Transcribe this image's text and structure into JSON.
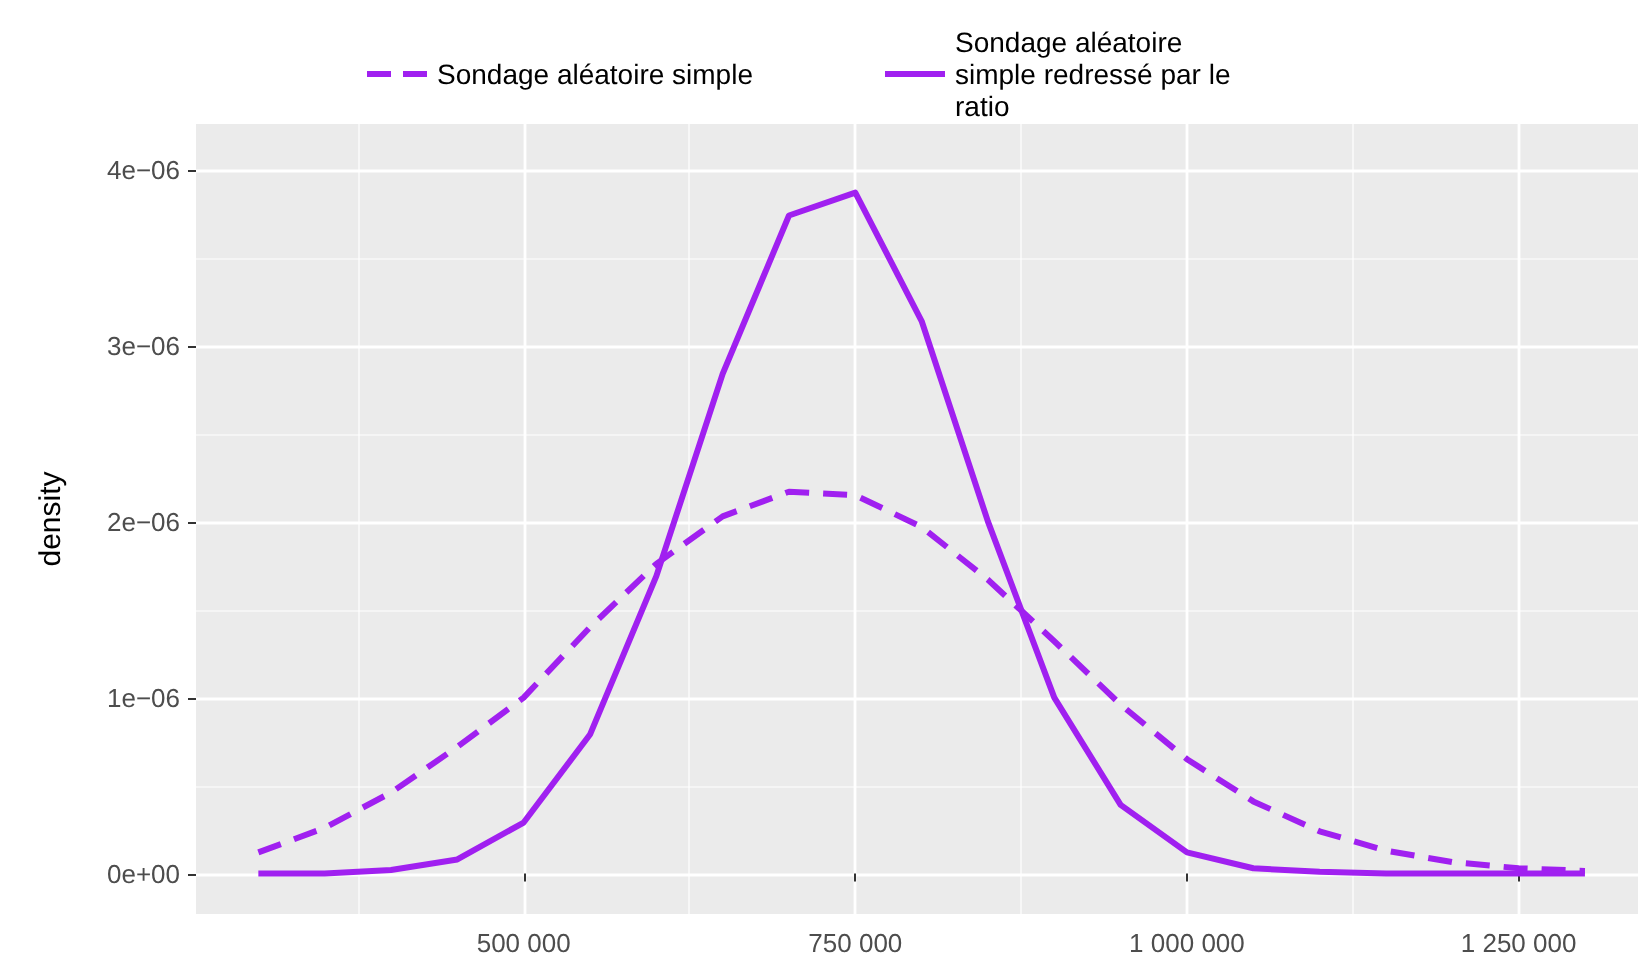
{
  "chart_data": {
    "type": "line",
    "ylabel": "density",
    "x": [
      300000,
      350000,
      400000,
      450000,
      500000,
      550000,
      600000,
      650000,
      700000,
      750000,
      800000,
      850000,
      900000,
      950000,
      1000000,
      1050000,
      1100000,
      1150000,
      1200000,
      1250000,
      1300000
    ],
    "series": [
      {
        "name": "Sondage aléatoire simple",
        "color": "#a020f0",
        "line_style": "dashed",
        "values": [
          1.2e-07,
          2.6e-07,
          4.6e-07,
          7.2e-07,
          1e-06,
          1.4e-06,
          1.76e-06,
          2.03e-06,
          2.17e-06,
          2.15e-06,
          1.97e-06,
          1.67e-06,
          1.32e-06,
          9.6e-07,
          6.5e-07,
          4.1e-07,
          2.4e-07,
          1.3e-07,
          6.5e-08,
          3e-08,
          1.5e-08
        ]
      },
      {
        "name": "Sondage aléatoire simple redressé par le ratio",
        "color": "#a020f0",
        "line_style": "solid",
        "values": [
          0,
          0,
          2e-08,
          8e-08,
          2.9e-07,
          7.9e-07,
          1.69e-06,
          2.84e-06,
          3.74e-06,
          3.87e-06,
          3.14e-06,
          2e-06,
          1e-06,
          3.9e-07,
          1.2e-07,
          3e-08,
          1e-08,
          0,
          0,
          0,
          0
        ]
      }
    ],
    "xlim": [
      253000,
      1340000
    ],
    "xticks": [
      {
        "value": 500000,
        "label": "500 000"
      },
      {
        "value": 750000,
        "label": "750 000"
      },
      {
        "value": 1000000,
        "label": "1 000 000"
      },
      {
        "value": 1250000,
        "label": "1 250 000"
      }
    ],
    "ylim": [
      -2.3e-07,
      4.26e-06
    ],
    "yticks": [
      {
        "value": 0,
        "label": "0e+00"
      },
      {
        "value": 1e-06,
        "label": "1e−06"
      },
      {
        "value": 2e-06,
        "label": "2e−06"
      },
      {
        "value": 3e-06,
        "label": "3e−06"
      },
      {
        "value": 4e-06,
        "label": "4e−06"
      }
    ],
    "grid": true,
    "legend": "top",
    "marker": "none"
  }
}
